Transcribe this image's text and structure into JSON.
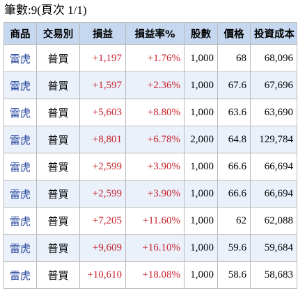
{
  "summary": "筆數:9(頁次 1/1)",
  "table": {
    "headers": {
      "product": "商品",
      "trade_type": "交易別",
      "profit_loss": "損益",
      "profit_loss_rate": "損益率%",
      "quantity": "股數",
      "price": "價格",
      "investment_cost": "投資成本"
    },
    "rows": [
      {
        "product": "雷虎",
        "trade_type": "普買",
        "profit_loss": "+1,197",
        "profit_loss_rate": "+1.76%",
        "quantity": "1,000",
        "price": "68",
        "investment_cost": "68,096"
      },
      {
        "product": "雷虎",
        "trade_type": "普買",
        "profit_loss": "+1,597",
        "profit_loss_rate": "+2.36%",
        "quantity": "1,000",
        "price": "67.6",
        "investment_cost": "67,696"
      },
      {
        "product": "雷虎",
        "trade_type": "普買",
        "profit_loss": "+5,603",
        "profit_loss_rate": "+8.80%",
        "quantity": "1,000",
        "price": "63.6",
        "investment_cost": "63,690"
      },
      {
        "product": "雷虎",
        "trade_type": "普買",
        "profit_loss": "+8,801",
        "profit_loss_rate": "+6.78%",
        "quantity": "2,000",
        "price": "64.8",
        "investment_cost": "129,784"
      },
      {
        "product": "雷虎",
        "trade_type": "普買",
        "profit_loss": "+2,599",
        "profit_loss_rate": "+3.90%",
        "quantity": "1,000",
        "price": "66.6",
        "investment_cost": "66,694"
      },
      {
        "product": "雷虎",
        "trade_type": "普買",
        "profit_loss": "+2,599",
        "profit_loss_rate": "+3.90%",
        "quantity": "1,000",
        "price": "66.6",
        "investment_cost": "66,694"
      },
      {
        "product": "雷虎",
        "trade_type": "普買",
        "profit_loss": "+7,205",
        "profit_loss_rate": "+11.60%",
        "quantity": "1,000",
        "price": "62",
        "investment_cost": "62,088"
      },
      {
        "product": "雷虎",
        "trade_type": "普買",
        "profit_loss": "+9,609",
        "profit_loss_rate": "+16.10%",
        "quantity": "1,000",
        "price": "59.6",
        "investment_cost": "59,684"
      },
      {
        "product": "雷虎",
        "trade_type": "普買",
        "profit_loss": "+10,610",
        "profit_loss_rate": "+18.08%",
        "quantity": "1,000",
        "price": "58.6",
        "investment_cost": "58,683"
      }
    ]
  },
  "colors": {
    "header_bg": "#c6d8f0",
    "stripe_bg": "#eaf1fb",
    "gain_red": "#c8202a",
    "product_blue": "#1f3f99",
    "border": "#b9b9b9"
  }
}
